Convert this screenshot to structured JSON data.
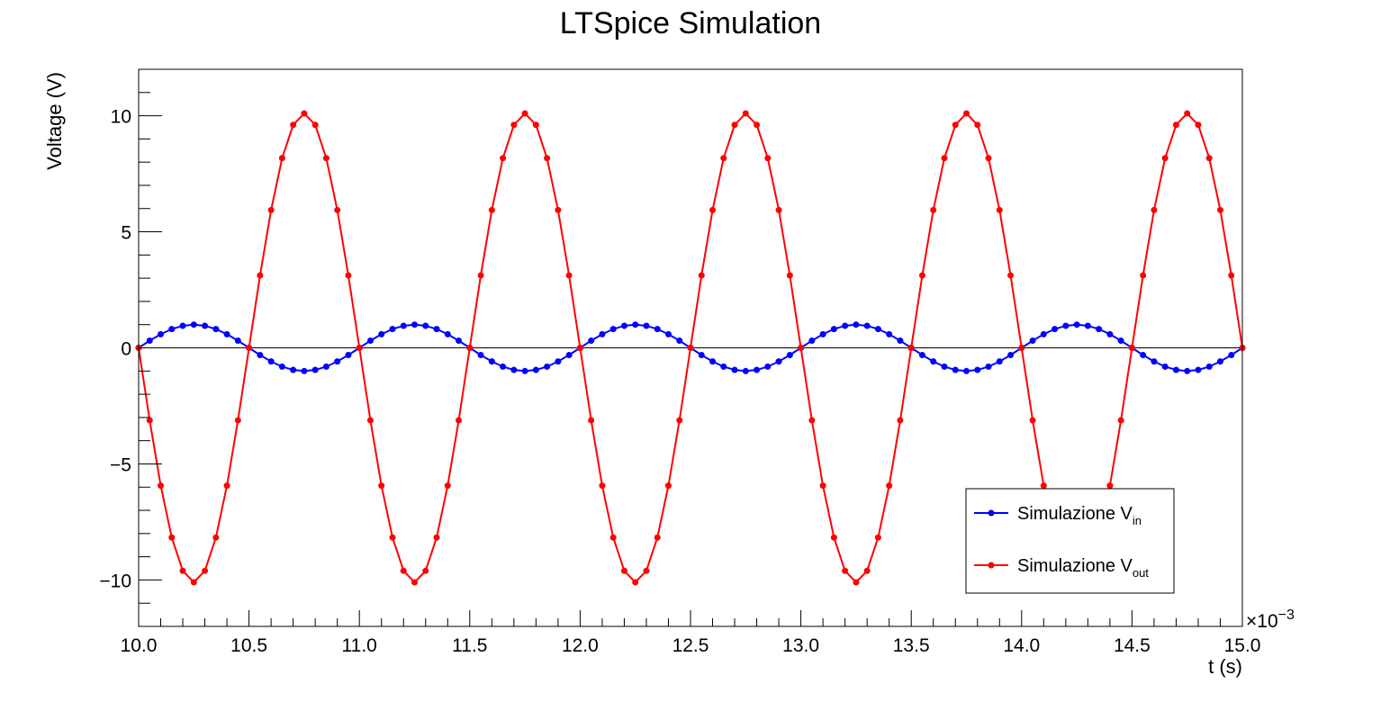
{
  "chart_data": {
    "type": "line",
    "title": "LTSpice Simulation",
    "xlabel": "t (s)",
    "ylabel": "Voltage (V)",
    "x_exponent_label": "×10",
    "x_exponent_power": "−3",
    "xlim": [
      10.0,
      15.0
    ],
    "ylim": [
      -12,
      12
    ],
    "x_ticks": [
      10.0,
      10.5,
      11.0,
      11.5,
      12.0,
      12.5,
      13.0,
      13.5,
      14.0,
      14.5,
      15.0
    ],
    "x_tick_labels": [
      "10.0",
      "10.5",
      "11.0",
      "11.5",
      "12.0",
      "12.5",
      "13.0",
      "13.5",
      "14.0",
      "14.5",
      "15.0"
    ],
    "y_ticks": [
      -10,
      -5,
      0,
      5,
      10
    ],
    "y_tick_labels": [
      "−10",
      "−5",
      "0",
      "5",
      "10"
    ],
    "grid": false,
    "zero_line": true,
    "legend_position": "bottom-right",
    "period_ms": 1.0,
    "sample_step_ms": 0.05,
    "series": [
      {
        "name": "Simulazione V",
        "name_subscript": "in",
        "color": "#0000ff",
        "amplitude": 1.0,
        "phase": "sine"
      },
      {
        "name": "Simulazione V",
        "name_subscript": "out",
        "color": "#ff0000",
        "amplitude": 10.1,
        "phase": "inverted-sine"
      }
    ]
  }
}
